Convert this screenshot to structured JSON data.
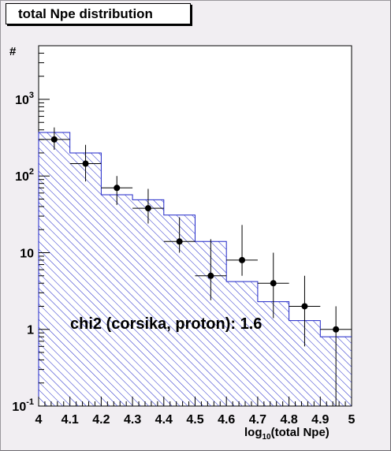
{
  "chart_data": {
    "type": "histogram",
    "title": "total Npe distribution",
    "ylabel": "#",
    "xlabel_main": "log",
    "xlabel_sub": "10",
    "xlabel_rest": "(total Npe)",
    "x_tick_labels": [
      "4",
      "4.1",
      "4.2",
      "4.3",
      "4.4",
      "4.5",
      "4.6",
      "4.7",
      "4.8",
      "4.9",
      "5"
    ],
    "y_scale": "log",
    "ylim": [
      0.1,
      5000
    ],
    "y_tick_labels": [
      {
        "value": 0.1,
        "base": "10",
        "exp": "-1"
      },
      {
        "value": 1,
        "base": "1",
        "exp": ""
      },
      {
        "value": 10,
        "base": "10",
        "exp": ""
      },
      {
        "value": 100,
        "base": "10",
        "exp": "2"
      },
      {
        "value": 1000,
        "base": "10",
        "exp": "3"
      }
    ],
    "xlim": [
      4.0,
      5.0
    ],
    "bin_edges": [
      4.0,
      4.1,
      4.2,
      4.3,
      4.4,
      4.5,
      4.6,
      4.7,
      4.8,
      4.9,
      5.0
    ],
    "series": [
      {
        "style": "hatched-histogram",
        "bin_values": [
          370,
          200,
          57,
          49,
          31,
          14,
          4.2,
          2.3,
          1.3,
          0.8
        ]
      },
      {
        "style": "points-with-errors",
        "x": [
          4.05,
          4.15,
          4.25,
          4.35,
          4.45,
          4.55,
          4.65,
          4.75,
          4.85,
          4.95
        ],
        "y": [
          300,
          145,
          70,
          38,
          14,
          5,
          8,
          4,
          2,
          1
        ],
        "y_err_low": [
          80,
          60,
          28,
          14,
          4,
          2.6,
          3,
          2.6,
          1.4,
          1
        ],
        "y_err_high": [
          130,
          110,
          30,
          30,
          15,
          10,
          15,
          6,
          3,
          1
        ]
      }
    ],
    "annotation": "chi2 (corsika, proton): 1.6",
    "colors": {
      "histogram_line": "#1f26c8",
      "hatch": "#1f26c8",
      "points": "#000000",
      "background": "#f1eef2",
      "plot_background": "#ffffff"
    }
  }
}
